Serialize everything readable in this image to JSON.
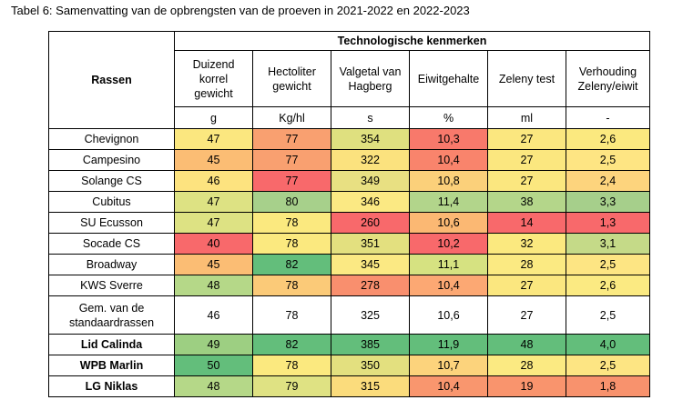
{
  "caption": "Tabel 6: Samenvatting van de opbrengsten van de proeven in 2021-2022 en 2022-2023",
  "header": {
    "rassen": "Rassen",
    "group": "Technologische kenmerken",
    "columns": [
      {
        "lines": [
          "Duizend",
          "korrel",
          "gewicht"
        ],
        "unit": "g"
      },
      {
        "lines": [
          "Hectoliter",
          "gewicht"
        ],
        "unit": "Kg/hl"
      },
      {
        "lines": [
          "Valgetal van",
          "Hagberg"
        ],
        "unit": "s"
      },
      {
        "lines": [
          "Eiwitgehalte"
        ],
        "unit": "%"
      },
      {
        "lines": [
          "Zeleny test"
        ],
        "unit": "ml"
      },
      {
        "lines": [
          "Verhouding",
          "Zeleny/eiwit"
        ],
        "unit": "-"
      }
    ]
  },
  "rows": [
    {
      "name": [
        "Chevignon"
      ],
      "bold": false,
      "values": [
        "47",
        "77",
        "354",
        "10,3",
        "27",
        "2,6"
      ],
      "colors": [
        "#fbe77f",
        "#f9a070",
        "#dfe07f",
        "#f8796b",
        "#fbe77f",
        "#fbe97f"
      ]
    },
    {
      "name": [
        "Campesino"
      ],
      "bold": false,
      "values": [
        "45",
        "77",
        "322",
        "10,4",
        "27",
        "2,5"
      ],
      "colors": [
        "#fbbd74",
        "#f9a070",
        "#fbe27e",
        "#f9846c",
        "#fbe77f",
        "#fee583"
      ]
    },
    {
      "name": [
        "Solange CS"
      ],
      "bold": false,
      "values": [
        "46",
        "77",
        "349",
        "10,8",
        "27",
        "2,4"
      ],
      "colors": [
        "#fde37f",
        "#f8696b",
        "#e8e082",
        "#fbd07a",
        "#fbe77f",
        "#fdd47d"
      ]
    },
    {
      "name": [
        "Cubitus"
      ],
      "bold": false,
      "values": [
        "47",
        "80",
        "346",
        "11,4",
        "38",
        "3,3"
      ],
      "colors": [
        "#dde283",
        "#a7d08b",
        "#fbe983",
        "#b2d58b",
        "#b4d68a",
        "#a6cf8b"
      ]
    },
    {
      "name": [
        "SU Ecusson"
      ],
      "bold": false,
      "values": [
        "47",
        "78",
        "260",
        "10,6",
        "14",
        "1,3"
      ],
      "colors": [
        "#dde283",
        "#fbe97f",
        "#f8696b",
        "#fbb873",
        "#f8696b",
        "#f8696b"
      ]
    },
    {
      "name": [
        "Socade CS"
      ],
      "bold": false,
      "values": [
        "40",
        "78",
        "351",
        "10,2",
        "32",
        "3,1"
      ],
      "colors": [
        "#f8696b",
        "#fbe97f",
        "#e3e07f",
        "#f8696b",
        "#fbe97f",
        "#c5da88"
      ]
    },
    {
      "name": [
        "Broadway"
      ],
      "bold": false,
      "values": [
        "45",
        "82",
        "345",
        "11,1",
        "28",
        "2,5"
      ],
      "colors": [
        "#fbbd74",
        "#63be7b",
        "#fbe983",
        "#d6e281",
        "#fbea82",
        "#fde583"
      ]
    },
    {
      "name": [
        "KWS Sverre"
      ],
      "bold": false,
      "values": [
        "48",
        "78",
        "278",
        "10,4",
        "27",
        "2,6"
      ],
      "colors": [
        "#b5d888",
        "#fbca78",
        "#f98f6e",
        "#fca873",
        "#fbe77f",
        "#fbea82"
      ]
    },
    {
      "name": [
        "Gem. van de",
        "standaardrassen"
      ],
      "bold": false,
      "values": [
        "46",
        "78",
        "325",
        "10,6",
        "27",
        "2,5"
      ],
      "colors": [
        "#ffffff",
        "#ffffff",
        "#ffffff",
        "#ffffff",
        "#ffffff",
        "#ffffff"
      ]
    },
    {
      "name": [
        "Lid Calinda"
      ],
      "bold": true,
      "values": [
        "49",
        "82",
        "385",
        "11,9",
        "48",
        "4,0"
      ],
      "colors": [
        "#9dcf82",
        "#63be7b",
        "#63be7b",
        "#63be7b",
        "#63be7b",
        "#63be7b"
      ]
    },
    {
      "name": [
        "WPB Marlin"
      ],
      "bold": true,
      "values": [
        "50",
        "78",
        "350",
        "10,7",
        "28",
        "2,5"
      ],
      "colors": [
        "#63be7b",
        "#fbe97f",
        "#e3e07f",
        "#fcd37c",
        "#fbea82",
        "#fde583"
      ]
    },
    {
      "name": [
        "LG Niklas"
      ],
      "bold": true,
      "values": [
        "48",
        "79",
        "315",
        "10,4",
        "19",
        "1,8"
      ],
      "colors": [
        "#b5d888",
        "#dfe283",
        "#fbdc7c",
        "#f9966e",
        "#f9946d",
        "#f8926d"
      ]
    }
  ]
}
